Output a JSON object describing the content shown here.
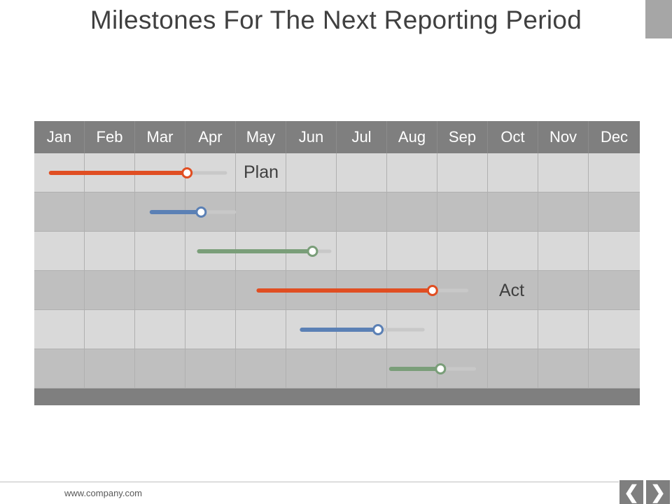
{
  "title": "Milestones For The Next Reporting Period",
  "months": [
    "Jan",
    "Feb",
    "Mar",
    "Apr",
    "May",
    "Jun",
    "Jul",
    "Aug",
    "Sep",
    "Oct",
    "Nov",
    "Dec"
  ],
  "annotations": {
    "plan": "Plan",
    "act": "Act"
  },
  "footer": {
    "url": "www.company.com"
  },
  "nav": {
    "prev_icon": "chevron-left-icon",
    "next_icon": "chevron-right-icon"
  },
  "colors": {
    "header": "#7f7f7f",
    "row_light": "#d9d9d9",
    "row_dark": "#bfbfbf",
    "orange": "#e04e22",
    "blue": "#5b80b5",
    "green": "#7a9e79",
    "track": "#c8c8c8"
  },
  "milestones": [
    {
      "row": 0,
      "color": "orange",
      "start": 0.33,
      "progress": 3.03,
      "end": 3.79
    },
    {
      "row": 1,
      "color": "blue",
      "start": 2.33,
      "progress": 3.31,
      "end": 3.97
    },
    {
      "row": 2,
      "color": "green",
      "start": 3.27,
      "progress": 5.52,
      "end": 5.86
    },
    {
      "row": 3,
      "color": "orange",
      "start": 4.45,
      "progress": 7.9,
      "end": 8.58
    },
    {
      "row": 4,
      "color": "blue",
      "start": 5.31,
      "progress": 6.82,
      "end": 7.71
    },
    {
      "row": 5,
      "color": "green",
      "start": 7.08,
      "progress": 8.06,
      "end": 8.73
    }
  ]
}
